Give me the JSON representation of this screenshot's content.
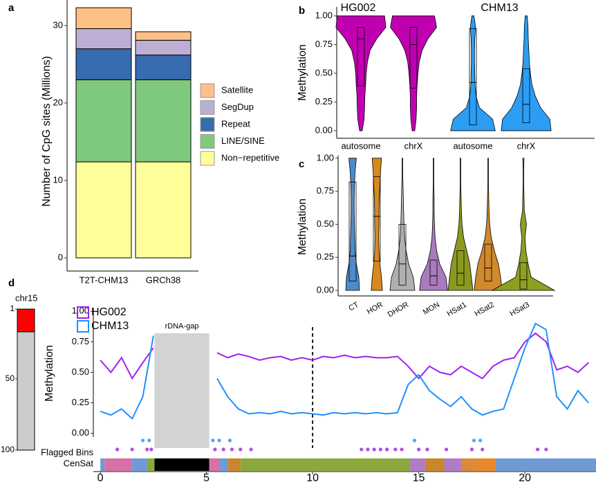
{
  "chart_data": [
    {
      "type": "stacked_bar",
      "panel_label": "a",
      "ylabel": "Number of CpG sites (Millions)",
      "categories": [
        "T2T-CHM13",
        "GRCh38"
      ],
      "series": [
        {
          "name": "Non−repetitive",
          "color": "#ffff99",
          "values": [
            12.4,
            12.4
          ]
        },
        {
          "name": "LINE/SINE",
          "color": "#7fc97f",
          "values": [
            10.6,
            10.6
          ]
        },
        {
          "name": "Repeat",
          "color": "#386cb0",
          "values": [
            4.0,
            3.2
          ]
        },
        {
          "name": "SegDup",
          "color": "#beaed4",
          "values": [
            2.6,
            1.9
          ]
        },
        {
          "name": "Satellite",
          "color": "#fdc086",
          "values": [
            2.7,
            1.1
          ]
        }
      ],
      "ylim": [
        -1.7,
        33.3
      ],
      "yticks": [
        0,
        10,
        20,
        30
      ]
    },
    {
      "type": "violin",
      "panel_label": "b",
      "ylabel": "Methylation",
      "groups": [
        "HG002",
        "CHM13"
      ],
      "categories": [
        "autosome",
        "chrX",
        "autosome",
        "chrX"
      ],
      "density_y": [
        0,
        0.1,
        0.2,
        0.3,
        0.4,
        0.5,
        0.6,
        0.7,
        0.8,
        0.9,
        1.0
      ],
      "violins": [
        {
          "color": "#c000b0",
          "density": [
            0.05,
            0.12,
            0.14,
            0.15,
            0.18,
            0.2,
            0.25,
            0.35,
            0.6,
            0.95,
            0.9
          ],
          "box": {
            "q1": 0.39,
            "median": 0.8,
            "q3": 0.9
          }
        },
        {
          "color": "#c000b0",
          "density": [
            0.05,
            0.1,
            0.12,
            0.12,
            0.14,
            0.17,
            0.22,
            0.33,
            0.55,
            0.88,
            0.8
          ],
          "box": {
            "q1": 0.37,
            "median": 0.75,
            "q3": 0.9
          }
        },
        {
          "color": "#2b9df4",
          "density": [
            0.85,
            0.75,
            0.25,
            0.12,
            0.08,
            0.07,
            0.06,
            0.06,
            0.07,
            0.1,
            0.04
          ],
          "box": {
            "q1": 0.05,
            "median": 0.42,
            "q3": 0.89
          }
        },
        {
          "color": "#2b9df4",
          "density": [
            0.95,
            0.9,
            0.55,
            0.35,
            0.22,
            0.16,
            0.12,
            0.1,
            0.08,
            0.07,
            0.04
          ],
          "box": {
            "q1": 0.07,
            "median": 0.23,
            "q3": 0.54
          }
        }
      ],
      "ylim": [
        -0.066,
        1.078
      ],
      "yticks": [
        {
          "value": 0,
          "label": "0.00"
        },
        {
          "value": 0.25,
          "label": "0.25"
        },
        {
          "value": 0.5,
          "label": "0.50"
        },
        {
          "value": 0.75,
          "label": "0.75"
        },
        {
          "value": 1,
          "label": "1.00"
        }
      ]
    },
    {
      "type": "violin",
      "panel_label": "c",
      "ylabel": "Methylation",
      "categories": [
        "CT",
        "HOR",
        "DHOR",
        "MON",
        "HSat1",
        "HSat2",
        "HSat3"
      ],
      "density_y": [
        0,
        0.1,
        0.2,
        0.3,
        0.4,
        0.5,
        0.6,
        0.7,
        0.8,
        0.9,
        1.0
      ],
      "violins": [
        {
          "color": "#4e8bc9",
          "density": [
            0.22,
            0.2,
            0.12,
            0.08,
            0.07,
            0.06,
            0.05,
            0.05,
            0.06,
            0.08,
            0.12
          ],
          "box": {
            "q1": 0.07,
            "median": 0.26,
            "q3": 0.82
          }
        },
        {
          "color": "#d68a1e",
          "density": [
            0.18,
            0.15,
            0.1,
            0.07,
            0.06,
            0.07,
            0.07,
            0.08,
            0.1,
            0.12,
            0.15
          ],
          "box": {
            "q1": 0.22,
            "median": 0.56,
            "q3": 0.86
          }
        },
        {
          "color": "#b0b0b0",
          "density": [
            0.4,
            0.35,
            0.2,
            0.12,
            0.07,
            0.05,
            0.04,
            0.03,
            0.02,
            0.01,
            0.01
          ],
          "box": {
            "q1": 0.04,
            "median": 0.2,
            "q3": 0.5
          }
        },
        {
          "color": "#a87bbd",
          "density": [
            0.45,
            0.4,
            0.2,
            0.1,
            0.05,
            0.03,
            0.02,
            0.02,
            0.01,
            0.01,
            0.01
          ],
          "box": {
            "q1": 0.04,
            "median": 0.11,
            "q3": 0.23
          }
        },
        {
          "color": "#8b9a1e",
          "density": [
            0.4,
            0.35,
            0.3,
            0.2,
            0.1,
            0.05,
            0.03,
            0.02,
            0.01,
            0.01,
            0.01
          ],
          "box": {
            "q1": 0.04,
            "median": 0.13,
            "q3": 0.3
          }
        },
        {
          "color": "#d0892b",
          "density": [
            0.45,
            0.4,
            0.33,
            0.2,
            0.1,
            0.05,
            0.03,
            0.02,
            0.01,
            0.01,
            0.01
          ],
          "box": {
            "q1": 0.07,
            "median": 0.17,
            "q3": 0.35
          }
        },
        {
          "color": "#8fa020",
          "density": [
            1.0,
            0.25,
            0.15,
            0.08,
            0.05,
            0.1,
            0.03,
            0.02,
            0.01,
            0.01,
            0.02
          ],
          "box": {
            "q1": 0.01,
            "median": 0.08,
            "q3": 0.21
          }
        }
      ],
      "ylim": [
        -0.042,
        1.02
      ],
      "yticks": [
        {
          "value": 0,
          "label": "0.00"
        },
        {
          "value": 0.25,
          "label": "0.25"
        },
        {
          "value": 0.5,
          "label": "0.50"
        },
        {
          "value": 0.75,
          "label": "0.75"
        },
        {
          "value": 1,
          "label": "1.00"
        }
      ]
    },
    {
      "type": "ideogram",
      "title": "chr15",
      "ylim": [
        1,
        100
      ],
      "yticks": [
        1,
        50,
        100
      ],
      "highlight": [
        1,
        17
      ],
      "highlight_color": "#ff0000",
      "color": "#cccccc"
    },
    {
      "type": "line",
      "panel_label": "d",
      "ylabel": "Methylation",
      "x": [
        0,
        0.5,
        1,
        1.5,
        2,
        2.5,
        3,
        3.5,
        4,
        4.5,
        5,
        5.5,
        6,
        6.5,
        7,
        7.5,
        8,
        8.5,
        9,
        9.5,
        10,
        10.5,
        11,
        11.5,
        12,
        12.5,
        13,
        13.5,
        14,
        14.5,
        15,
        15.5,
        16,
        16.5,
        17,
        17.5,
        18,
        18.5,
        19,
        19.5,
        20,
        20.5,
        21,
        21.5,
        22,
        22.5,
        23
      ],
      "series": [
        {
          "name": "HG002",
          "color": "#a020f0",
          "values": [
            0.6,
            0.5,
            0.62,
            0.45,
            0.58,
            0.7,
            null,
            null,
            null,
            null,
            null,
            0.66,
            0.62,
            0.65,
            0.63,
            0.6,
            0.62,
            0.63,
            0.6,
            0.62,
            0.6,
            0.63,
            0.62,
            0.64,
            0.62,
            0.63,
            0.62,
            0.62,
            0.63,
            0.55,
            0.45,
            0.55,
            0.5,
            0.48,
            0.55,
            0.5,
            0.45,
            0.55,
            0.6,
            0.62,
            0.75,
            0.82,
            0.75,
            0.52,
            0.55,
            0.5,
            0.58
          ]
        },
        {
          "name": "CHM13",
          "color": "#1e90ff",
          "values": [
            0.18,
            0.15,
            0.2,
            0.12,
            0.3,
            0.8,
            null,
            null,
            null,
            null,
            null,
            0.45,
            0.3,
            0.2,
            0.16,
            0.17,
            0.16,
            0.18,
            0.16,
            0.17,
            0.16,
            0.15,
            0.17,
            0.16,
            0.17,
            0.16,
            0.17,
            0.16,
            0.17,
            0.4,
            0.48,
            0.35,
            0.28,
            0.22,
            0.3,
            0.2,
            0.15,
            0.18,
            0.2,
            0.45,
            0.7,
            0.9,
            0.85,
            0.3,
            0.2,
            0.35,
            0.25
          ]
        }
      ],
      "xlim": [
        -0.33,
        23.35
      ],
      "xticks": [
        0,
        5,
        10,
        15,
        20
      ],
      "ylim": [
        -0.03,
        1.03
      ],
      "yticks": [
        {
          "value": 0,
          "label": "0.00"
        },
        {
          "value": 0.25,
          "label": "0.25"
        },
        {
          "value": 0.5,
          "label": "0.50"
        },
        {
          "value": 0.75,
          "label": "0.75"
        },
        {
          "value": 1,
          "label": "1.00"
        }
      ],
      "annotation": {
        "label": "rDNA-gap",
        "x0": 2.55,
        "x1": 5.13,
        "color": "#d3d3d3"
      },
      "vline": 10,
      "flagged": {
        "label": "Flagged Bins",
        "rows": [
          {
            "color": "#56a5f0",
            "x": [
              2.0,
              2.3,
              5.3,
              5.6,
              6.1,
              14.8,
              17.6,
              17.9
            ]
          },
          {
            "color": "#b04de0",
            "x": [
              0.8,
              1.5,
              2.2,
              2.4,
              5.4,
              5.8,
              6.2,
              6.6,
              7.1,
              12.3,
              12.6,
              12.9,
              13.2,
              13.5,
              13.9,
              14.2,
              15.0,
              15.4,
              16.3,
              17.5,
              18.0,
              20.6,
              21.0
            ]
          }
        ]
      },
      "censat": {
        "label": "CenSat",
        "segments": [
          [
            0,
            0.2,
            "#6e9bd6"
          ],
          [
            0.2,
            1.5,
            "#d870a8"
          ],
          [
            1.5,
            2.2,
            "#6e9bd6"
          ],
          [
            2.2,
            2.55,
            "#8aa83c"
          ],
          [
            2.55,
            5.13,
            "#000000"
          ],
          [
            5.13,
            5.6,
            "#d870a8"
          ],
          [
            5.6,
            6.0,
            "#6e9bd6"
          ],
          [
            6.0,
            6.6,
            "#c9862c"
          ],
          [
            6.6,
            14.6,
            "#8aa83c"
          ],
          [
            14.6,
            15.3,
            "#b07cc6"
          ],
          [
            15.3,
            16.2,
            "#c9862c"
          ],
          [
            16.2,
            17.0,
            "#b07cc6"
          ],
          [
            17.0,
            17.7,
            "#d98a3a"
          ],
          [
            17.7,
            18.6,
            "#e8882a"
          ],
          [
            18.6,
            23.35,
            "#6e9bd6"
          ]
        ]
      }
    }
  ]
}
